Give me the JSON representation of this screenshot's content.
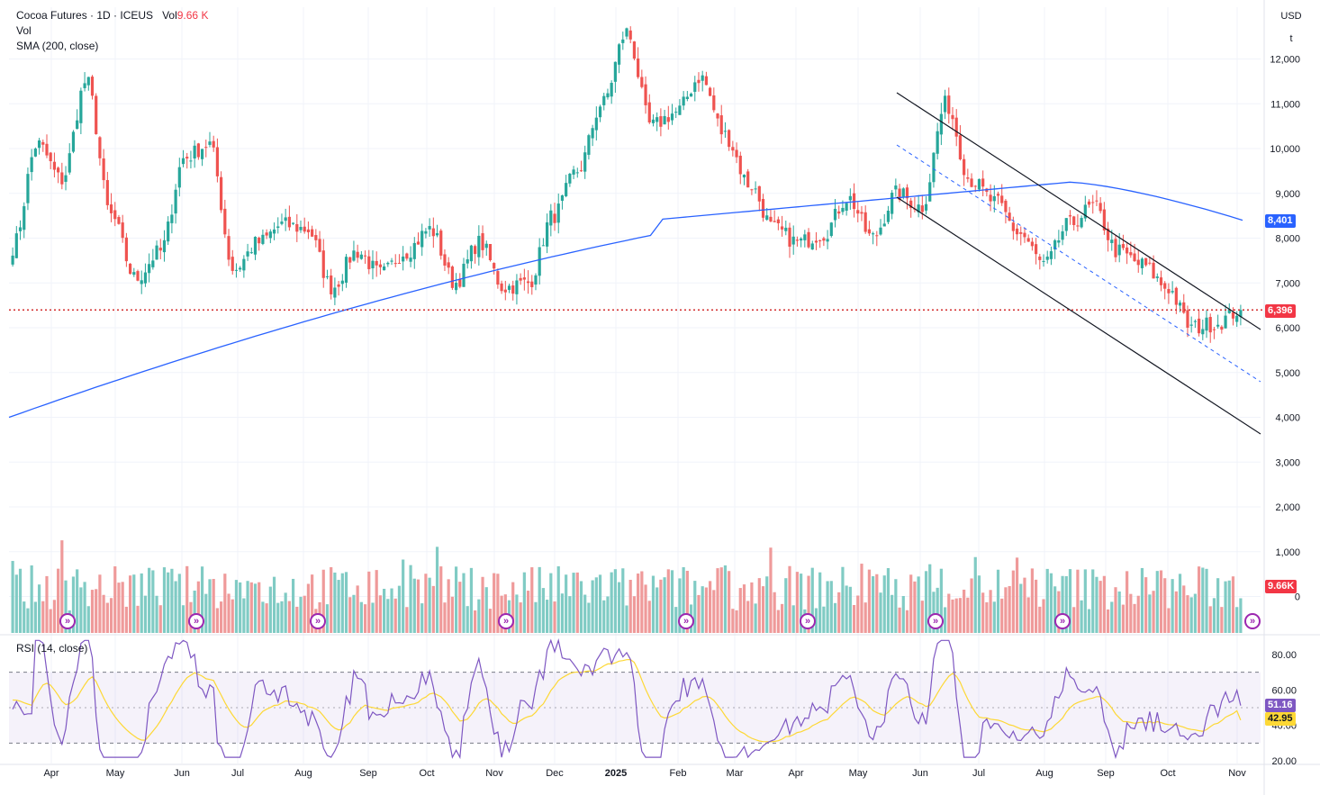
{
  "legend": {
    "symbol": "Cocoa Futures · 1D · ICEUS",
    "vol_label": "Vol",
    "vol_value": "9.66 K",
    "line2": "Vol",
    "line3": "SMA (200, close)"
  },
  "rsi_legend": "RSI (14, close)",
  "axis": {
    "currency": "USD",
    "unit": "t",
    "price_ticks": [
      "12,000",
      "11,000",
      "10,000",
      "9,000",
      "8,000",
      "7,000",
      "6,000",
      "5,000",
      "4,000",
      "3,000",
      "2,000",
      "1,000",
      "0"
    ],
    "rsi_ticks": [
      "80.00",
      "60.00",
      "40.00",
      "20.00"
    ]
  },
  "badges": {
    "sma": "8,401",
    "last_price": "6,396",
    "volume": "9.66K",
    "rsi": "51.16",
    "rsi_ma": "42.95"
  },
  "time_axis": [
    "Apr",
    "May",
    "Jun",
    "Jul",
    "Aug",
    "Sep",
    "Oct",
    "Nov",
    "Dec",
    "2025",
    "Feb",
    "Mar",
    "Apr",
    "May",
    "Jun",
    "Jul",
    "Aug",
    "Sep",
    "Oct",
    "Nov"
  ],
  "colors": {
    "up": "#26a69a",
    "down": "#ef5350",
    "sma": "#2962ff",
    "rsi_line": "#7e57c2",
    "rsi_ma": "#fdd835",
    "last_price_line": "#d32f2f"
  },
  "event_icon": "forward-arrow-icon",
  "chart_data": {
    "type": "candlestick",
    "price_anchors": [
      {
        "x": "Apr",
        "close": 7800
      },
      {
        "x": "Apr-mid",
        "close": 10100
      },
      {
        "x": "Apr-late",
        "close": 9300
      },
      {
        "x": "May-early",
        "close": 11500
      },
      {
        "x": "May",
        "close": 8500
      },
      {
        "x": "May-mid",
        "close": 7100
      },
      {
        "x": "Jun-early",
        "close": 7700
      },
      {
        "x": "Jun",
        "close": 9800
      },
      {
        "x": "Jun-mid",
        "close": 10100
      },
      {
        "x": "Jul-early",
        "close": 7300
      },
      {
        "x": "Jul",
        "close": 7900
      },
      {
        "x": "Jul-mid",
        "close": 8300
      },
      {
        "x": "Aug-early",
        "close": 8200
      },
      {
        "x": "Aug",
        "close": 6900
      },
      {
        "x": "Aug-mid",
        "close": 7700
      },
      {
        "x": "Sep",
        "close": 7200
      },
      {
        "x": "Sep-mid",
        "close": 7700
      },
      {
        "x": "Oct",
        "close": 8200
      },
      {
        "x": "Oct-mid",
        "close": 7000
      },
      {
        "x": "Oct-late",
        "close": 7900
      },
      {
        "x": "Nov",
        "close": 6900
      },
      {
        "x": "Nov-mid",
        "close": 7000
      },
      {
        "x": "Nov-late",
        "close": 8500
      },
      {
        "x": "Dec-early",
        "close": 9500
      },
      {
        "x": "Dec",
        "close": 11000
      },
      {
        "x": "Dec-late",
        "close": 12600
      },
      {
        "x": "2025",
        "close": 10500
      },
      {
        "x": "Jan-mid",
        "close": 10800
      },
      {
        "x": "Jan-late",
        "close": 11600
      },
      {
        "x": "Feb",
        "close": 10300
      },
      {
        "x": "Feb-mid",
        "close": 9200
      },
      {
        "x": "Mar",
        "close": 8200
      },
      {
        "x": "Mar-mid",
        "close": 7900
      },
      {
        "x": "Apr",
        "close": 8100
      },
      {
        "x": "Apr-mid",
        "close": 8900
      },
      {
        "x": "Apr-late",
        "close": 8000
      },
      {
        "x": "May",
        "close": 9000
      },
      {
        "x": "May-mid",
        "close": 8700
      },
      {
        "x": "May-late",
        "close": 11000
      },
      {
        "x": "Jun",
        "close": 9300
      },
      {
        "x": "Jun-mid",
        "close": 8800
      },
      {
        "x": "Jul",
        "close": 8100
      },
      {
        "x": "Jul-mid",
        "close": 7400
      },
      {
        "x": "Aug",
        "close": 8300
      },
      {
        "x": "Aug-mid",
        "close": 8700
      },
      {
        "x": "Sep",
        "close": 7700
      },
      {
        "x": "Sep-mid",
        "close": 7400
      },
      {
        "x": "Oct",
        "close": 6900
      },
      {
        "x": "Oct-mid",
        "close": 6000
      },
      {
        "x": "Oct-late",
        "close": 6100
      },
      {
        "x": "Nov",
        "close": 6396
      }
    ],
    "sma_200": {
      "start": 4000,
      "mid_peak": 9250,
      "end": 8401
    },
    "last_price": 6396,
    "ylim": [
      0,
      12800
    ],
    "rsi": {
      "current": 51.16,
      "ma": 42.95,
      "upper_band": 70,
      "lower_band": 30,
      "ylim": [
        15,
        90
      ]
    }
  }
}
